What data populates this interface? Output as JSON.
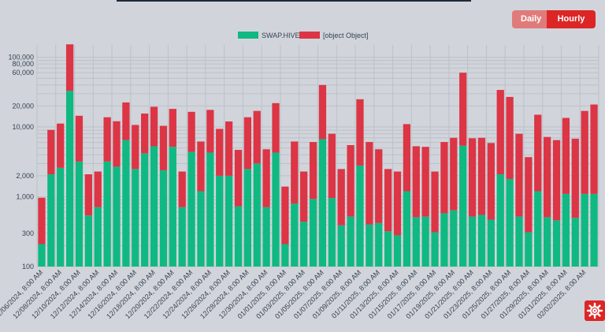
{
  "toggle": {
    "daily_label": "Daily",
    "hourly_label": "Hourly",
    "active": "Hourly"
  },
  "colors": {
    "active_button": "#dc2626",
    "inactive_button": "#e07b7b",
    "swap_hive": "#10b981",
    "other": "#dc3545"
  },
  "settings_icon": "gear-icon",
  "chart_data": {
    "type": "bar",
    "stacked": true,
    "yscale": "log",
    "ylim": [
      100,
      150000
    ],
    "yticks": [
      100,
      300,
      1000,
      2000,
      10000,
      20000,
      60000,
      80000,
      100000
    ],
    "ytick_labels": [
      "100",
      "300",
      "1,000",
      "2,000",
      "10,000",
      "20,000",
      "60,000",
      "80,000",
      "100,000"
    ],
    "legend_position": "top",
    "grid": true,
    "title": "",
    "xlabel": "",
    "ylabel": "",
    "x_tick_labels": [
      "12/06/2024, 8:00 AM",
      "12/08/2024, 8:00 AM",
      "12/10/2024, 8:00 AM",
      "12/12/2024, 8:00 AM",
      "12/14/2024, 8:00 AM",
      "12/16/2024, 8:00 AM",
      "12/18/2024, 8:00 AM",
      "12/20/2024, 8:00 AM",
      "12/22/2024, 8:00 AM",
      "12/24/2024, 8:00 AM",
      "12/26/2024, 8:00 AM",
      "12/28/2024, 8:00 AM",
      "12/30/2024, 8:00 AM",
      "01/01/2025, 8:00 AM",
      "01/03/2025, 8:00 AM",
      "01/05/2025, 8:00 AM",
      "01/07/2025, 8:00 AM",
      "01/09/2025, 8:00 AM",
      "01/11/2025, 8:00 AM",
      "01/13/2025, 8:00 AM",
      "01/15/2025, 8:00 AM",
      "01/17/2025, 8:00 AM",
      "01/19/2025, 8:00 AM",
      "01/21/2025, 8:00 AM",
      "01/23/2025, 8:00 AM",
      "01/25/2025, 8:00 AM",
      "01/27/2025, 8:00 AM",
      "01/29/2025, 8:00 AM",
      "01/31/2025, 8:00 AM",
      "02/02/2025, 8:00 AM"
    ],
    "series": [
      {
        "name": "SWAP.HIVE",
        "color": "#10b981",
        "values": [
          210,
          2100,
          2600,
          33000,
          3200,
          540,
          710,
          3200,
          2700,
          6500,
          2500,
          4200,
          5300,
          2400,
          5200,
          710,
          4400,
          1200,
          4300,
          2000,
          2000,
          730,
          2500,
          3000,
          710,
          4300,
          210,
          800,
          440,
          930,
          6700,
          960,
          390,
          520,
          2800,
          400,
          420,
          320,
          280,
          1200,
          510,
          520,
          310,
          580,
          640,
          5400,
          520,
          550,
          470,
          2100,
          1800,
          520,
          310,
          1200,
          510,
          460,
          1100,
          500,
          1100,
          1100
        ]
      },
      {
        "name": "[object Object]",
        "color": "#dc3545",
        "values": [
          760,
          7000,
          8600,
          120000,
          11300,
          1560,
          1590,
          10600,
          9400,
          16000,
          8200,
          11400,
          14200,
          8000,
          13000,
          1590,
          12100,
          5000,
          13300,
          7400,
          10000,
          3970,
          11300,
          14000,
          4090,
          17700,
          1190,
          5400,
          1860,
          5170,
          33300,
          7040,
          2110,
          4980,
          22200,
          5700,
          4380,
          2180,
          2020,
          9800,
          4790,
          4680,
          1990,
          5520,
          6360,
          54600,
          6380,
          6450,
          5430,
          31900,
          25200,
          7480,
          3390,
          13800,
          6690,
          6040,
          12400,
          6300,
          15900,
          19900
        ]
      }
    ]
  }
}
